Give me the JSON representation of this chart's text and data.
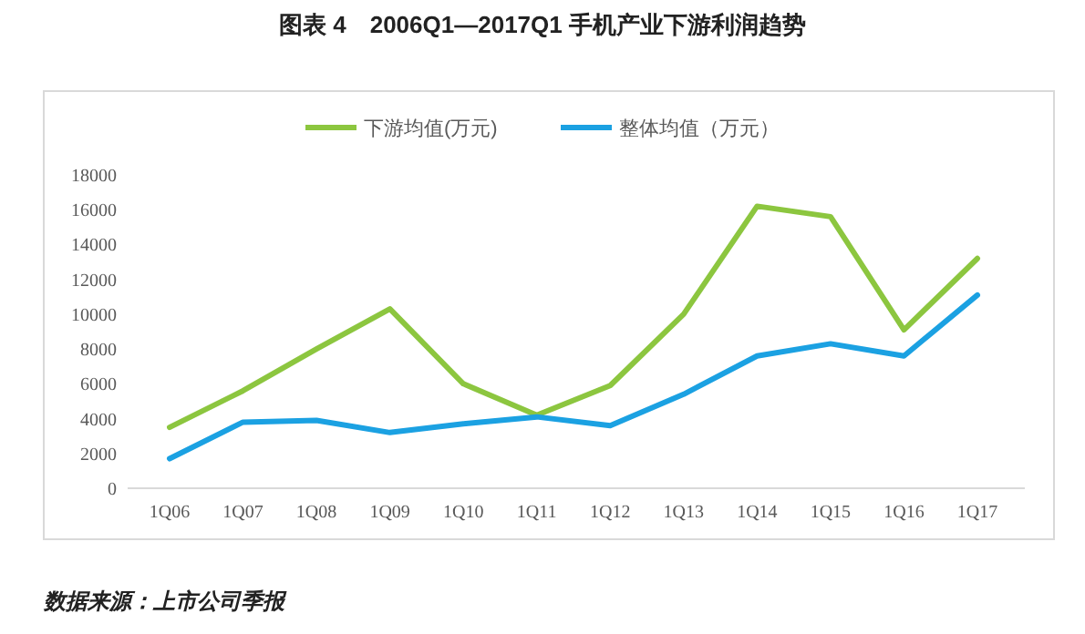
{
  "chart_data": {
    "type": "line",
    "title": "图表 4　2006Q1—2017Q1 手机产业下游利润趋势",
    "categories": [
      "1Q06",
      "1Q07",
      "1Q08",
      "1Q09",
      "1Q10",
      "1Q11",
      "1Q12",
      "1Q13",
      "1Q14",
      "1Q15",
      "1Q16",
      "1Q17"
    ],
    "series": [
      {
        "name": "下游均值(万元)",
        "color": "#8cc63f",
        "values": [
          3500,
          5600,
          8000,
          10300,
          6000,
          4200,
          5900,
          10000,
          16200,
          15600,
          9100,
          13200
        ]
      },
      {
        "name": "整体均值（万元）",
        "color": "#1ba1e2",
        "values": [
          1700,
          3800,
          3900,
          3200,
          3700,
          4100,
          3600,
          5400,
          7600,
          8300,
          7600,
          11100
        ]
      }
    ],
    "ylim": [
      0,
      18000
    ],
    "yticks": [
      0,
      2000,
      4000,
      6000,
      8000,
      10000,
      12000,
      14000,
      16000,
      18000
    ],
    "grid": false,
    "legend": "top",
    "marker": "none",
    "line_style": "solid",
    "annotations": [
      "数据来源：上市公司季报"
    ]
  }
}
